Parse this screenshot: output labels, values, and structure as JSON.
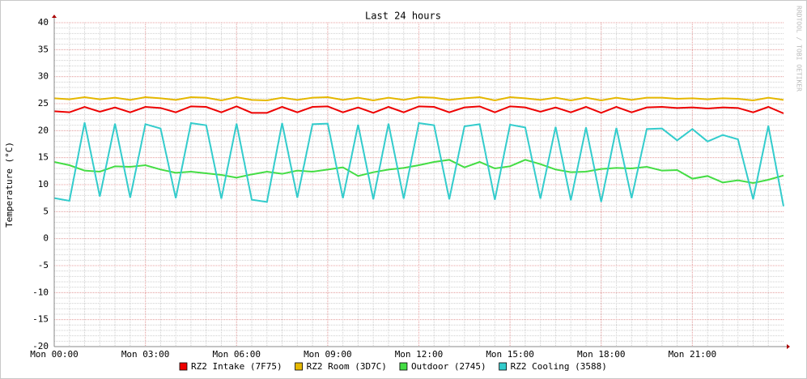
{
  "chart_data": {
    "type": "line",
    "title": "Last 24 hours",
    "ylabel": "Temperature (°C)",
    "watermark": "RRDTOOL / TOBI OETIKER",
    "x": [
      0,
      0.5,
      1,
      1.5,
      2,
      2.5,
      3,
      3.5,
      4,
      4.5,
      5,
      5.5,
      6,
      6.5,
      7,
      7.5,
      8,
      8.5,
      9,
      9.5,
      10,
      10.5,
      11,
      11.5,
      12,
      12.5,
      13,
      13.5,
      14,
      14.5,
      15,
      15.5,
      16,
      16.5,
      17,
      17.5,
      18,
      18.5,
      19,
      19.5,
      20,
      20.5,
      21,
      21.5,
      22,
      22.5,
      23,
      23.5,
      24
    ],
    "xlim": [
      0,
      24
    ],
    "xticks": [
      {
        "value": 0,
        "label": "Mon 00:00"
      },
      {
        "value": 3,
        "label": "Mon 03:00"
      },
      {
        "value": 6,
        "label": "Mon 06:00"
      },
      {
        "value": 9,
        "label": "Mon 09:00"
      },
      {
        "value": 12,
        "label": "Mon 12:00"
      },
      {
        "value": 15,
        "label": "Mon 15:00"
      },
      {
        "value": 18,
        "label": "Mon 18:00"
      },
      {
        "value": 21,
        "label": "Mon 21:00"
      }
    ],
    "ylim": [
      -20,
      40
    ],
    "yticks": [
      -20,
      -15,
      -10,
      -5,
      0,
      5,
      10,
      15,
      20,
      25,
      30,
      35,
      40
    ],
    "grid": true,
    "series": [
      {
        "name": "RZ2 Intake (7F75)",
        "color": "#ee0000",
        "values": [
          23.6,
          23.4,
          24.4,
          23.5,
          24.3,
          23.4,
          24.4,
          24.2,
          23.4,
          24.5,
          24.4,
          23.4,
          24.5,
          23.3,
          23.3,
          24.4,
          23.4,
          24.4,
          24.5,
          23.4,
          24.3,
          23.3,
          24.4,
          23.4,
          24.5,
          24.4,
          23.4,
          24.3,
          24.5,
          23.4,
          24.5,
          24.3,
          23.5,
          24.3,
          23.4,
          24.4,
          23.3,
          24.4,
          23.4,
          24.3,
          24.4,
          24.2,
          24.3,
          24.1,
          24.3,
          24.2,
          23.4,
          24.4,
          23.2
        ]
      },
      {
        "name": "RZ2 Room (3D7C)",
        "color": "#e6b800",
        "values": [
          26.0,
          25.8,
          26.2,
          25.8,
          26.1,
          25.7,
          26.2,
          26.0,
          25.7,
          26.2,
          26.1,
          25.6,
          26.2,
          25.7,
          25.6,
          26.1,
          25.7,
          26.1,
          26.2,
          25.7,
          26.1,
          25.6,
          26.1,
          25.7,
          26.2,
          26.1,
          25.7,
          26.0,
          26.2,
          25.6,
          26.2,
          26.0,
          25.7,
          26.1,
          25.6,
          26.1,
          25.6,
          26.1,
          25.7,
          26.1,
          26.1,
          25.9,
          26.0,
          25.8,
          26.0,
          25.9,
          25.6,
          26.1,
          25.7
        ]
      },
      {
        "name": "Outdoor (2745)",
        "color": "#44dd44",
        "values": [
          14.2,
          13.6,
          12.6,
          12.4,
          13.4,
          13.3,
          13.6,
          12.8,
          12.2,
          12.4,
          12.1,
          11.8,
          11.3,
          11.9,
          12.4,
          12.0,
          12.6,
          12.4,
          12.8,
          13.2,
          11.6,
          12.3,
          12.8,
          13.1,
          13.6,
          14.2,
          14.6,
          13.2,
          14.2,
          13.0,
          13.4,
          14.6,
          13.8,
          12.8,
          12.3,
          12.4,
          12.9,
          13.1,
          13.0,
          13.3,
          12.6,
          12.7,
          11.1,
          11.6,
          10.4,
          10.8,
          10.3,
          10.9,
          11.7
        ]
      },
      {
        "name": "RZ2 Cooling (3588)",
        "color": "#33cccc",
        "values": [
          7.5,
          7.0,
          21.5,
          7.8,
          21.3,
          7.6,
          21.2,
          20.4,
          7.5,
          21.4,
          21.0,
          7.4,
          21.3,
          7.2,
          6.8,
          21.4,
          7.6,
          21.2,
          21.3,
          7.5,
          21.1,
          7.3,
          21.3,
          7.4,
          21.4,
          21.0,
          7.3,
          20.8,
          21.2,
          7.2,
          21.1,
          20.6,
          7.4,
          20.7,
          7.1,
          20.6,
          6.8,
          20.5,
          7.5,
          20.3,
          20.4,
          18.2,
          20.3,
          18.0,
          19.2,
          18.4,
          7.3,
          20.9,
          6.0
        ]
      }
    ]
  }
}
